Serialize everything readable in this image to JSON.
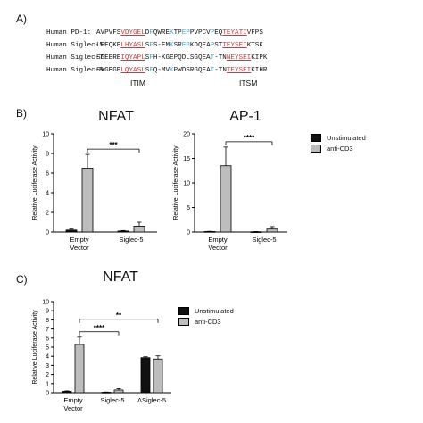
{
  "panel_a": {
    "letter": "A)",
    "rows": [
      {
        "name": "Human PD-1:",
        "segments": [
          {
            "t": "AVPVFS"
          },
          {
            "t": "VDYGEL",
            "c": "hl"
          },
          {
            "t": "D"
          },
          {
            "t": "F",
            "c": "cy"
          },
          {
            "t": "QWRE"
          },
          {
            "t": "K",
            "c": "cy"
          },
          {
            "t": "TP"
          },
          {
            "t": "EP",
            "c": "cy"
          },
          {
            "t": "PVPCV"
          },
          {
            "t": "P",
            "c": "cy"
          },
          {
            "t": "EQ"
          },
          {
            "t": "TEYATI",
            "c": "hl"
          },
          {
            "t": "VFPS"
          }
        ]
      },
      {
        "name": "Human Siglec-5:",
        "segments": [
          {
            "t": "LEEQKE"
          },
          {
            "t": "LHYASL",
            "c": "hl"
          },
          {
            "t": "S"
          },
          {
            "t": "F",
            "c": "cy"
          },
          {
            "t": "S-EM"
          },
          {
            "t": "K",
            "c": "cy"
          },
          {
            "t": "SR"
          },
          {
            "t": "EP",
            "c": "cy"
          },
          {
            "t": "KDQEA"
          },
          {
            "t": "P",
            "c": "cy"
          },
          {
            "t": "ST"
          },
          {
            "t": "TEYSEI",
            "c": "hl"
          },
          {
            "t": "KTSK"
          }
        ]
      },
      {
        "name": "Human Siglec-7:",
        "segments": [
          {
            "t": "SGEERE"
          },
          {
            "t": "IQYAPL",
            "c": "hl"
          },
          {
            "t": "S"
          },
          {
            "t": "F",
            "c": "cy"
          },
          {
            "t": "H-KGEP"
          },
          {
            "t": "QDLSGQEA"
          },
          {
            "t": "T",
            "c": "cy"
          },
          {
            "t": "-TN"
          },
          {
            "t": "NEYSEI",
            "c": "hl"
          },
          {
            "t": "KIPK"
          }
        ]
      },
      {
        "name": "Human Siglec-9:",
        "segments": [
          {
            "t": "SVGEGE"
          },
          {
            "t": "LQYASL",
            "c": "hl"
          },
          {
            "t": "S"
          },
          {
            "t": "F",
            "c": "cy"
          },
          {
            "t": "Q-MV"
          },
          {
            "t": "K",
            "c": "cy"
          },
          {
            "t": "P"
          },
          {
            "t": "WDSRGQEA"
          },
          {
            "t": "T",
            "c": "cy"
          },
          {
            "t": "-TN"
          },
          {
            "t": "TEYSEI",
            "c": "hl"
          },
          {
            "t": "KIHR"
          }
        ]
      }
    ],
    "motif_left": "ITIM",
    "motif_right": "ITSM"
  },
  "panel_b_letter": "B)",
  "panel_c_letter": "C)",
  "colors": {
    "unstimulated": "#111111",
    "anti_cd3": "#bdbdbd"
  },
  "chart_data": [
    {
      "type": "bar",
      "title": "NFAT",
      "ylabel": "Relative Luciferase Activity",
      "ylim": [
        0,
        10
      ],
      "yticks": [
        0,
        2,
        4,
        6,
        8,
        10
      ],
      "categories": [
        "Empty\nVector",
        "Siglec-5"
      ],
      "series": [
        {
          "name": "Unstimulated",
          "values": [
            0.2,
            0.1
          ],
          "errors": [
            0.1,
            0.05
          ]
        },
        {
          "name": "anti-CD3",
          "values": [
            6.5,
            0.6
          ],
          "errors": [
            1.4,
            0.4
          ]
        }
      ],
      "significance": [
        {
          "label": "***",
          "from": 0,
          "to": 1
        }
      ]
    },
    {
      "type": "bar",
      "title": "AP-1",
      "ylabel": "Relative Luciferase Activity",
      "ylim": [
        0,
        20
      ],
      "yticks": [
        0,
        5,
        10,
        15,
        20
      ],
      "categories": [
        "Empty\nVector",
        "Siglec-5"
      ],
      "series": [
        {
          "name": "Unstimulated",
          "values": [
            0.1,
            0.05
          ],
          "errors": [
            0.05,
            0.05
          ]
        },
        {
          "name": "anti-CD3",
          "values": [
            13.5,
            0.6
          ],
          "errors": [
            3.8,
            0.5
          ]
        }
      ],
      "significance": [
        {
          "label": "****",
          "from": 0,
          "to": 1
        }
      ],
      "legend": [
        "Unstimulated",
        "anti-CD3"
      ]
    },
    {
      "type": "bar",
      "title": "NFAT",
      "ylabel": "Relative Luciferase Activity",
      "ylim": [
        0,
        10
      ],
      "yticks": [
        0,
        1,
        2,
        3,
        4,
        5,
        6,
        7,
        8,
        9,
        10
      ],
      "categories": [
        "Empty\nVector",
        "Siglec-5",
        "ΔSiglec-5"
      ],
      "series": [
        {
          "name": "Unstimulated",
          "values": [
            0.15,
            0.05,
            3.85
          ],
          "errors": [
            0.05,
            0.03,
            0.1
          ]
        },
        {
          "name": "anti-CD3",
          "values": [
            5.3,
            0.3,
            3.7
          ],
          "errors": [
            0.8,
            0.15,
            0.35
          ]
        }
      ],
      "significance": [
        {
          "label": "****",
          "from": 0,
          "to": 1
        },
        {
          "label": "**",
          "from": 0,
          "to": 2
        }
      ],
      "legend": [
        "Unstimulated",
        "anti-CD3"
      ]
    }
  ]
}
